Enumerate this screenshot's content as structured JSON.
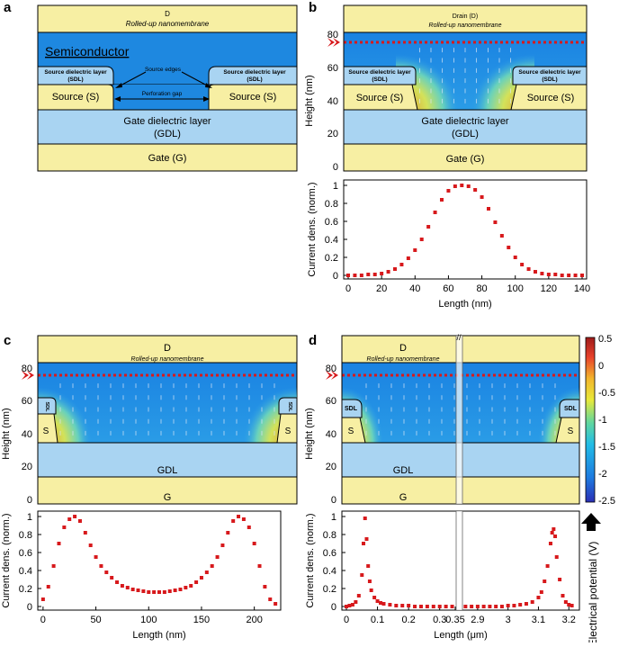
{
  "panel_labels": {
    "a": "a",
    "b": "b",
    "c": "c",
    "d": "d"
  },
  "panel_a": {
    "drain": "D",
    "rolled_up": "Rolled-up nanomembrane",
    "semiconductor": "Semiconductor",
    "sdl_line1": "Source dielectric layer",
    "sdl_line2": "(SDL)",
    "source_edges": "Source edges",
    "source": "Source (S)",
    "perforation_gap": "Perforation gap",
    "gdl_line1": "Gate dielectric layer",
    "gdl_line2": "(GDL)",
    "gate": "Gate (G)"
  },
  "panel_b": {
    "drain": "Drain (D)",
    "rolled_up": "Rolled-up nanomembrane",
    "sdl_line1": "Source dielectric layer",
    "sdl_line2": "(SDL)",
    "source": "Source (S)",
    "gdl_line1": "Gate dielectric layer",
    "gdl_line2": "(GDL)",
    "gate": "Gate (G)",
    "height_label": "Height (nm)",
    "height_ticks": [
      "0",
      "20",
      "40",
      "60",
      "80"
    ]
  },
  "panel_c": {
    "drain": "D",
    "rolled_up": "Rolled-up nanomembrane",
    "sdl": "SDL",
    "source": "S",
    "gdl": "GDL",
    "gate": "G",
    "height_label": "Height (nm)",
    "height_ticks": [
      "0",
      "20",
      "40",
      "60",
      "80"
    ]
  },
  "panel_d": {
    "drain": "D",
    "rolled_up": "Rolled-up nanomembrane",
    "sdl": "SDL",
    "source": "S",
    "gdl": "GDL",
    "gate": "G",
    "height_label": "Height (nm)",
    "height_ticks": [
      "0",
      "20",
      "40",
      "60",
      "80"
    ]
  },
  "colorbar": {
    "label": "Electrical potential (V)",
    "ticks": [
      "0.5",
      "0",
      "-0.5",
      "-1",
      "-1.5",
      "-2",
      "-2.5"
    ]
  },
  "colors": {
    "yellow": "#F7EFA3",
    "blue": "#1E88E0",
    "light_blue": "#A9D4F2",
    "red": "#D7191C"
  },
  "chart_data": [
    {
      "id": "b",
      "type": "scatter",
      "title": "",
      "xlabel": "Length (nm)",
      "ylabel": "Current dens. (norm.)",
      "xlim": [
        0,
        140
      ],
      "ylim": [
        0,
        1
      ],
      "xticks": [
        "0",
        "20",
        "40",
        "60",
        "80",
        "100",
        "120",
        "140"
      ],
      "yticks": [
        "0",
        "0.2",
        "0.4",
        "0.6",
        "0.8",
        "1"
      ],
      "x": [
        0,
        4,
        8,
        12,
        16,
        20,
        24,
        28,
        32,
        36,
        40,
        44,
        48,
        52,
        56,
        60,
        64,
        68,
        72,
        76,
        80,
        84,
        88,
        92,
        96,
        100,
        104,
        108,
        112,
        116,
        120,
        124,
        128,
        132,
        136,
        140
      ],
      "y": [
        0.0,
        0.0,
        0.0,
        0.01,
        0.01,
        0.02,
        0.04,
        0.07,
        0.12,
        0.19,
        0.28,
        0.4,
        0.54,
        0.7,
        0.84,
        0.94,
        0.99,
        1.0,
        0.99,
        0.95,
        0.87,
        0.74,
        0.59,
        0.44,
        0.31,
        0.2,
        0.12,
        0.07,
        0.04,
        0.02,
        0.01,
        0.01,
        0.0,
        0.0,
        0.0,
        0.0
      ]
    },
    {
      "id": "c",
      "type": "scatter",
      "title": "",
      "xlabel": "Length (nm)",
      "ylabel": "Current dens. (norm.)",
      "xlim": [
        -5,
        225
      ],
      "ylim": [
        0,
        1
      ],
      "xticks": [
        "0",
        "50",
        "100",
        "150",
        "200"
      ],
      "yticks": [
        "0",
        "0.2",
        "0.4",
        "0.6",
        "0.8",
        "1"
      ],
      "x": [
        0,
        5,
        10,
        15,
        20,
        25,
        30,
        35,
        40,
        45,
        50,
        55,
        60,
        65,
        70,
        75,
        80,
        85,
        90,
        95,
        100,
        105,
        110,
        115,
        120,
        125,
        130,
        135,
        140,
        145,
        150,
        155,
        160,
        165,
        170,
        175,
        180,
        185,
        190,
        195,
        200,
        205,
        210,
        215,
        220
      ],
      "y": [
        0.08,
        0.22,
        0.45,
        0.7,
        0.88,
        0.97,
        1.0,
        0.95,
        0.82,
        0.68,
        0.55,
        0.45,
        0.38,
        0.32,
        0.27,
        0.23,
        0.21,
        0.19,
        0.18,
        0.17,
        0.16,
        0.16,
        0.16,
        0.16,
        0.17,
        0.18,
        0.19,
        0.21,
        0.23,
        0.27,
        0.32,
        0.38,
        0.45,
        0.55,
        0.68,
        0.82,
        0.95,
        1.0,
        0.97,
        0.88,
        0.7,
        0.45,
        0.22,
        0.08,
        0.03
      ]
    },
    {
      "id": "d",
      "type": "scatter",
      "title": "",
      "xlabel": "Length (μm)",
      "ylabel": "Current dens. (norm.)",
      "axis_break": "0.35 – 2.85 μm",
      "yticks": [
        "0",
        "0.2",
        "0.4",
        "0.6",
        "0.8",
        "1"
      ],
      "xticks_left": [
        "0",
        "0.1",
        "0.2",
        "0.3",
        "0.35"
      ],
      "xticks_right": [
        "2.9",
        "3",
        "3.1",
        "3.2"
      ],
      "x_left": [
        0,
        0.01,
        0.02,
        0.03,
        0.04,
        0.05,
        0.055,
        0.06,
        0.065,
        0.07,
        0.075,
        0.08,
        0.09,
        0.1,
        0.11,
        0.12,
        0.14,
        0.16,
        0.18,
        0.2,
        0.22,
        0.24,
        0.26,
        0.28,
        0.3,
        0.32,
        0.34
      ],
      "y_left": [
        0.0,
        0.01,
        0.02,
        0.05,
        0.12,
        0.35,
        0.7,
        0.98,
        0.75,
        0.45,
        0.28,
        0.18,
        0.1,
        0.06,
        0.04,
        0.03,
        0.02,
        0.01,
        0.01,
        0.01,
        0.0,
        0.0,
        0.0,
        0.0,
        0.0,
        0.0,
        0.0
      ],
      "x_right": [
        2.86,
        2.88,
        2.9,
        2.92,
        2.94,
        2.96,
        2.98,
        3.0,
        3.02,
        3.04,
        3.06,
        3.08,
        3.1,
        3.11,
        3.12,
        3.13,
        3.14,
        3.145,
        3.15,
        3.155,
        3.16,
        3.17,
        3.18,
        3.19,
        3.2,
        3.21
      ],
      "y_right": [
        0.0,
        0.0,
        0.0,
        0.0,
        0.0,
        0.0,
        0.0,
        0.01,
        0.01,
        0.02,
        0.03,
        0.05,
        0.1,
        0.16,
        0.28,
        0.45,
        0.7,
        0.82,
        0.86,
        0.78,
        0.55,
        0.3,
        0.12,
        0.05,
        0.02,
        0.01
      ]
    }
  ]
}
